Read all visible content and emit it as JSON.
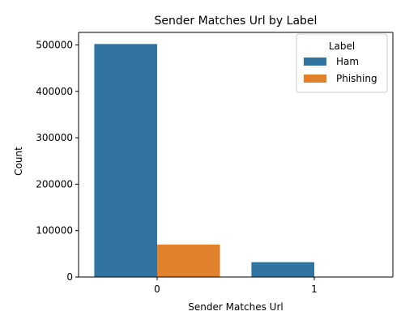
{
  "chart_data": {
    "type": "bar",
    "title": "Sender Matches Url by Label",
    "xlabel": "Sender Matches Url",
    "ylabel": "Count",
    "categories": [
      "0",
      "1"
    ],
    "series": [
      {
        "name": "Ham",
        "values": [
          502000,
          32000
        ],
        "color": "#3274a1"
      },
      {
        "name": "Phishing",
        "values": [
          70000,
          0
        ],
        "color": "#e1812c"
      }
    ],
    "ylim": [
      0,
      527000
    ],
    "yticks": [
      0,
      100000,
      200000,
      300000,
      400000,
      500000
    ],
    "grid": false,
    "legend": {
      "title": "Label",
      "position": "top-right"
    }
  }
}
